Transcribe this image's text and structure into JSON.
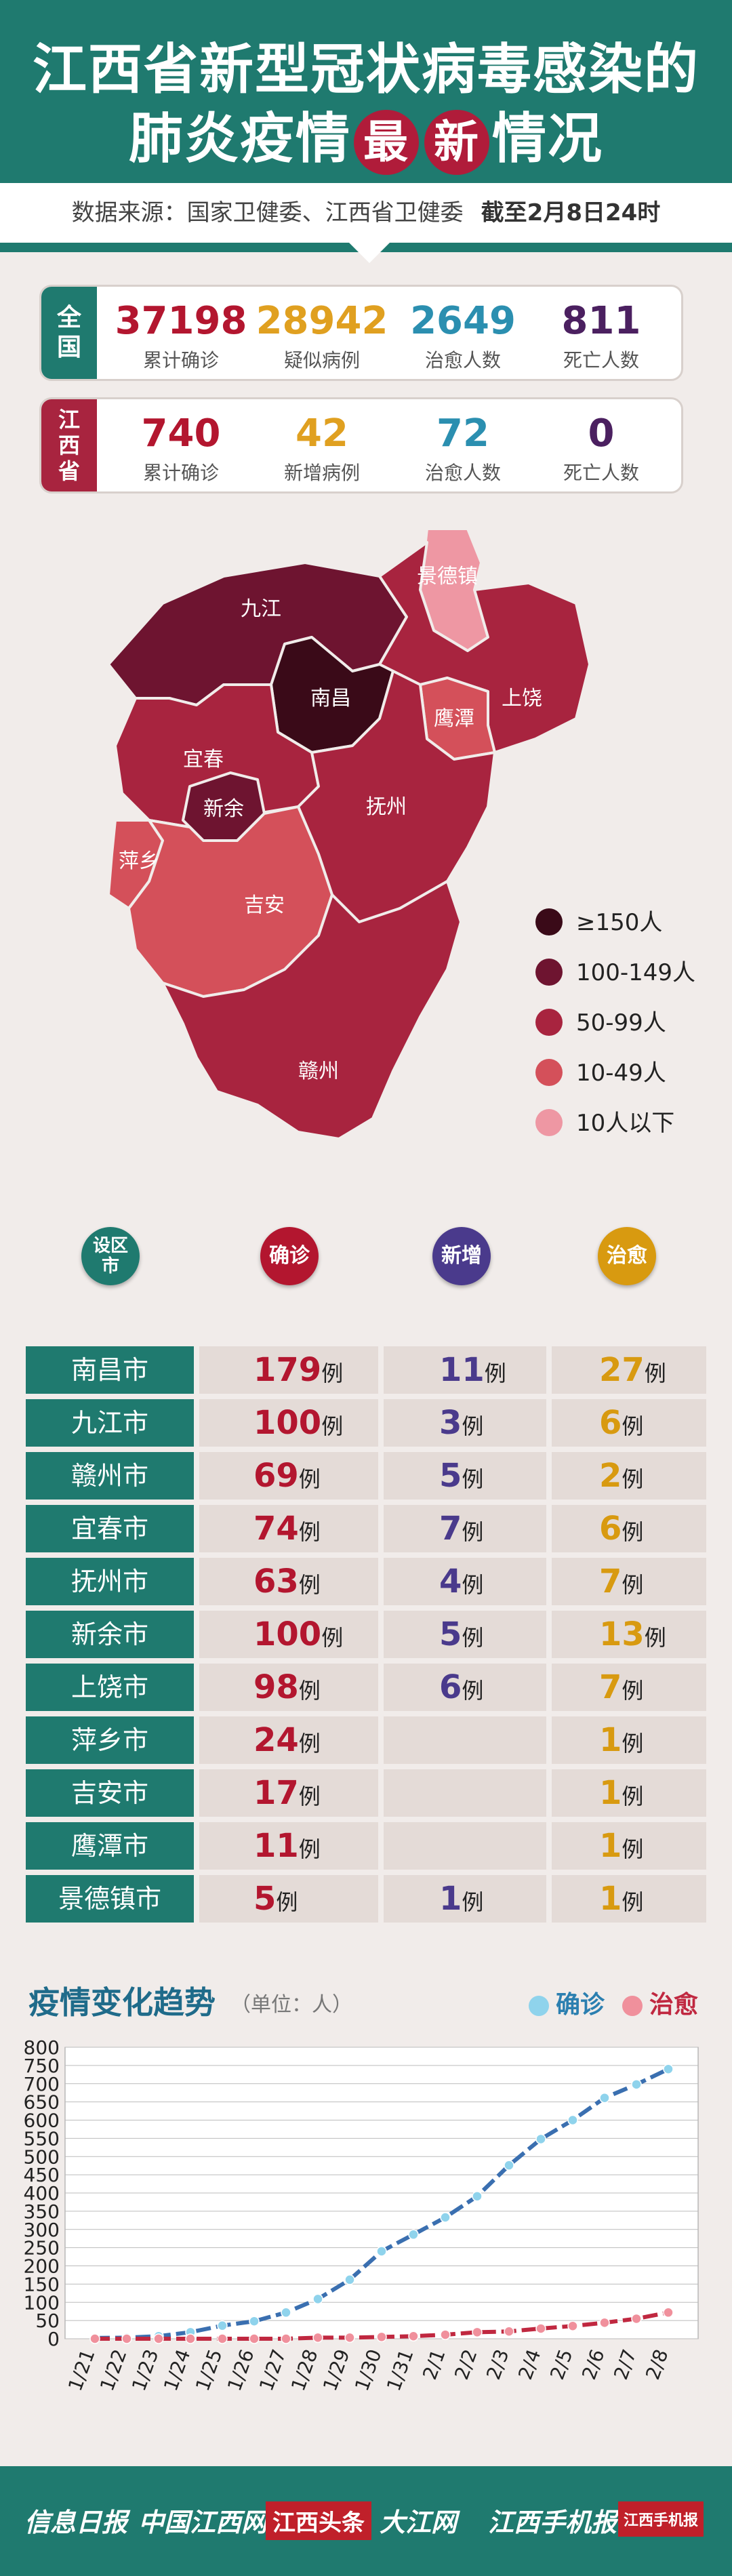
{
  "header": {
    "title_line1": "江西省新型冠状病毒感染的",
    "title_line2_a": "肺炎疫情",
    "badge1": "最",
    "badge2": "新",
    "title_line2_b": "情况",
    "source": "数据来源：国家卫健委、江西省卫健委",
    "date": "截至2月8日24时"
  },
  "national": {
    "label": [
      "全",
      "国"
    ],
    "stats": [
      {
        "value": "37198",
        "label": "累计确诊",
        "color": "#b3162f"
      },
      {
        "value": "28942",
        "label": "疑似病例",
        "color": "#e0a020"
      },
      {
        "value": "2649",
        "label": "治愈人数",
        "color": "#2b8fb0"
      },
      {
        "value": "811",
        "label": "死亡人数",
        "color": "#4b2060"
      }
    ]
  },
  "province": {
    "label": [
      "江",
      "西",
      "省"
    ],
    "stats": [
      {
        "value": "740",
        "label": "累计确诊",
        "color": "#b3162f"
      },
      {
        "value": "42",
        "label": "新增病例",
        "color": "#e0a020"
      },
      {
        "value": "72",
        "label": "治愈人数",
        "color": "#2b8fb0"
      },
      {
        "value": "0",
        "label": "死亡人数",
        "color": "#4b2060"
      }
    ]
  },
  "map": {
    "cities": [
      "九江",
      "景德镇",
      "南昌",
      "上饶",
      "鹰潭",
      "宜春",
      "新余",
      "抚州",
      "萍乡",
      "吉安",
      "赣州"
    ]
  },
  "legend": [
    {
      "label": "≥150人",
      "color": "#3a0a18"
    },
    {
      "label": "100-149人",
      "color": "#6e1430"
    },
    {
      "label": "50-99人",
      "color": "#a8243f"
    },
    {
      "label": "10-49人",
      "color": "#d4505a"
    },
    {
      "label": "10人以下",
      "color": "#ee97a3"
    }
  ],
  "table": {
    "headers": {
      "city": "设区市",
      "confirmed": "确诊",
      "new": "新增",
      "cured": "治愈"
    },
    "unit": "例",
    "rows": [
      {
        "city": "南昌市",
        "confirmed": "179",
        "new": "11",
        "cured": "27"
      },
      {
        "city": "九江市",
        "confirmed": "100",
        "new": "3",
        "cured": "6"
      },
      {
        "city": "赣州市",
        "confirmed": "69",
        "new": "5",
        "cured": "2"
      },
      {
        "city": "宜春市",
        "confirmed": "74",
        "new": "7",
        "cured": "6"
      },
      {
        "city": "抚州市",
        "confirmed": "63",
        "new": "4",
        "cured": "7"
      },
      {
        "city": "新余市",
        "confirmed": "100",
        "new": "5",
        "cured": "13"
      },
      {
        "city": "上饶市",
        "confirmed": "98",
        "new": "6",
        "cured": "7"
      },
      {
        "city": "萍乡市",
        "confirmed": "24",
        "new": "",
        "cured": "1"
      },
      {
        "city": "吉安市",
        "confirmed": "17",
        "new": "",
        "cured": "1"
      },
      {
        "city": "鹰潭市",
        "confirmed": "11",
        "new": "",
        "cured": "1"
      },
      {
        "city": "景德镇市",
        "confirmed": "5",
        "new": "1",
        "cured": "1"
      }
    ],
    "colors": {
      "city": "#1f7a6f",
      "confirmed": "#b3162f",
      "new": "#4a3a8c",
      "cured": "#d89a10"
    }
  },
  "trend": {
    "title": "疫情变化趋势",
    "unit": "（单位：人）"
  },
  "chart_data": {
    "type": "line",
    "title": "疫情变化趋势",
    "ylabel": "（单位：人）",
    "x": [
      "1/21",
      "1/22",
      "1/23",
      "1/24",
      "1/25",
      "1/26",
      "1/27",
      "1/28",
      "1/29",
      "1/30",
      "1/31",
      "2/1",
      "2/2",
      "2/3",
      "2/4",
      "2/5",
      "2/6",
      "2/7",
      "2/8"
    ],
    "ylim": [
      0,
      800
    ],
    "yticks": [
      0,
      50,
      100,
      150,
      200,
      250,
      300,
      350,
      400,
      450,
      500,
      550,
      600,
      650,
      700,
      750,
      800
    ],
    "grid": true,
    "legend_position": "top-right",
    "series": [
      {
        "name": "确诊",
        "color": "#3a6fb0",
        "marker": "#8fd3ec",
        "values": [
          2,
          3,
          7,
          18,
          36,
          48,
          72,
          109,
          162,
          240,
          286,
          333,
          391,
          476,
          548,
          600,
          661,
          698,
          740
        ]
      },
      {
        "name": "治愈",
        "color": "#c02840",
        "marker": "#f0909c",
        "values": [
          0,
          0,
          0,
          0,
          0,
          0,
          0,
          3,
          3,
          5,
          7,
          11,
          18,
          20,
          28,
          35,
          44,
          55,
          72
        ]
      }
    ]
  },
  "footer": {
    "logos": [
      "信息日报",
      "中国江西网",
      "江西头条",
      "大江网",
      "江西手机报",
      "江西手机报"
    ]
  }
}
